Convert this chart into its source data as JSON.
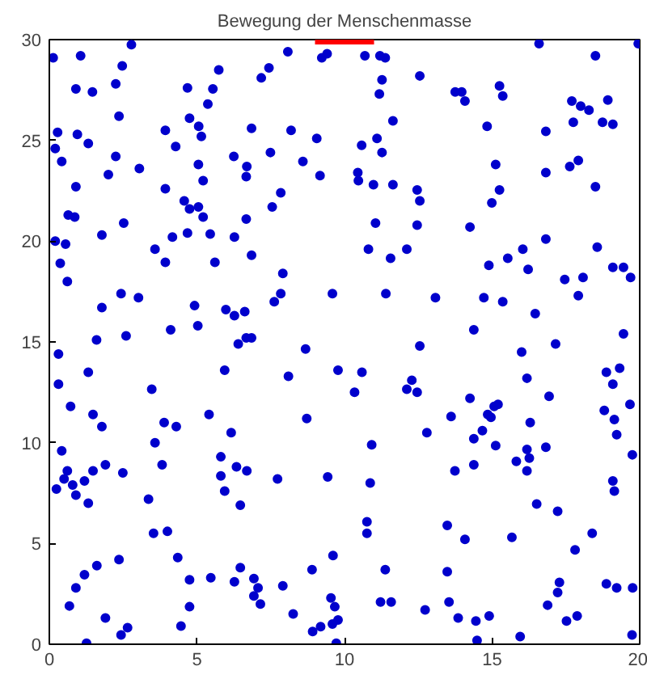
{
  "chart_data": {
    "type": "scatter",
    "title": "Bewegung der Menschenmasse",
    "xlim": [
      0,
      20
    ],
    "ylim": [
      0,
      30
    ],
    "xticks": [
      0,
      5,
      10,
      15,
      20
    ],
    "yticks": [
      0,
      5,
      10,
      15,
      20,
      25,
      30
    ],
    "grid": false,
    "marker": "circle",
    "series": [
      {
        "color": "#0000cc",
        "x": [
          0.13,
          1.06,
          2.78,
          2.47,
          0.9,
          1.46,
          2.25,
          2.36,
          0.28,
          0.95,
          1.32,
          0.2,
          0.42,
          2.25,
          2.0,
          3.05,
          0.9,
          0.64,
          0.86,
          2.52,
          1.78,
          0.2,
          0.55,
          0.37,
          0.61,
          2.43,
          1.78,
          3.02,
          2.6,
          1.6,
          4.68,
          5.54,
          5.74,
          4.75,
          5.06,
          5.37,
          5.15,
          3.93,
          4.28,
          5.05,
          5.21,
          3.93,
          4.57,
          5.05,
          4.75,
          5.21,
          4.68,
          4.17,
          5.45,
          3.58,
          3.93,
          5.61,
          6.25,
          6.69,
          6.67,
          6.85,
          7.49,
          7.84,
          7.55,
          6.67,
          6.27,
          6.85,
          7.91,
          7.84,
          7.62,
          8.59,
          9.17,
          9.06,
          8.19,
          7.18,
          7.44,
          8.08,
          9.23,
          9.41,
          9.59,
          4.92,
          5.03,
          4.11,
          5.98,
          6.27,
          6.62,
          6.67,
          6.85,
          10.69,
          11.2,
          11.38,
          11.27,
          11.18,
          12.55,
          11.64,
          10.58,
          11.1,
          11.27,
          10.45,
          10.47,
          10.98,
          11.64,
          12.46,
          12.55,
          11.05,
          12.46,
          10.81,
          12.11,
          11.56,
          11.4,
          13.08,
          13.75,
          13.97,
          14.08,
          15.25,
          15.36,
          14.83,
          15.12,
          15.25,
          14.99,
          14.25,
          14.89,
          15.53,
          16.04,
          16.22,
          16.82,
          16.82,
          16.82,
          16.59,
          14.72,
          15.36,
          16.46,
          14.38,
          17.7,
          18.0,
          18.28,
          18.92,
          17.75,
          18.74,
          19.09,
          18.5,
          19.95,
          17.63,
          17.92,
          18.5,
          18.56,
          19.09,
          19.45,
          19.69,
          18.08,
          17.46,
          17.92,
          19.45,
          0.31,
          0.31,
          3.47,
          1.32,
          0.72,
          1.48,
          1.78,
          0.42,
          0.61,
          0.5,
          0.24,
          0.79,
          0.9,
          1.19,
          1.48,
          1.32,
          1.9,
          2.49,
          3.58,
          3.89,
          4.3,
          3.82,
          3.36,
          3.53,
          4.0,
          4.35,
          4.75,
          4.75,
          4.46,
          5.41,
          5.94,
          6.4,
          6.16,
          5.81,
          5.81,
          5.94,
          6.34,
          6.69,
          6.47,
          7.73,
          8.1,
          8.68,
          8.72,
          9.78,
          9.43,
          9.61,
          8.9,
          5.47,
          6.27,
          6.47,
          6.93,
          7.07,
          6.93,
          7.15,
          7.91,
          8.26,
          8.92,
          9.19,
          9.59,
          9.78,
          9.67,
          9.54,
          9.72,
          1.61,
          1.19,
          0.9,
          0.68,
          1.9,
          1.26,
          2.36,
          2.43,
          2.65,
          10.59,
          10.34,
          10.92,
          10.87,
          10.76,
          10.76,
          11.38,
          11.22,
          11.58,
          12.55,
          12.11,
          12.28,
          12.46,
          12.79,
          12.73,
          13.61,
          13.74,
          13.48,
          14.08,
          13.48,
          13.54,
          13.85,
          14.25,
          14.38,
          14.38,
          14.67,
          14.85,
          14.96,
          15.07,
          15.2,
          15.12,
          14.45,
          14.49,
          14.9,
          15.82,
          16.0,
          16.18,
          16.29,
          16.18,
          16.26,
          16.18,
          16.51,
          15.67,
          15.95,
          16.82,
          16.93,
          17.15,
          17.22,
          17.28,
          17.22,
          16.88,
          17.52,
          17.88,
          17.81,
          18.39,
          18.8,
          18.87,
          19.09,
          19.32,
          19.14,
          19.22,
          19.67,
          19.75,
          19.09,
          19.14,
          18.87,
          19.22,
          19.76,
          19.74
        ],
        "values": [
          29.1,
          29.2,
          29.75,
          28.7,
          27.55,
          27.4,
          27.8,
          26.2,
          25.4,
          25.3,
          24.85,
          24.6,
          23.95,
          24.2,
          23.3,
          23.6,
          22.7,
          21.3,
          21.2,
          20.9,
          20.3,
          20.0,
          19.85,
          18.9,
          18.0,
          17.4,
          16.7,
          17.2,
          15.3,
          15.1,
          27.6,
          27.55,
          28.5,
          26.1,
          25.7,
          26.8,
          25.2,
          25.5,
          24.7,
          23.8,
          23.0,
          22.6,
          22.0,
          21.7,
          21.6,
          21.2,
          20.4,
          20.2,
          20.35,
          19.6,
          18.95,
          18.95,
          24.2,
          23.7,
          23.2,
          25.6,
          24.4,
          22.4,
          21.7,
          21.1,
          20.2,
          19.3,
          18.4,
          17.4,
          17.0,
          23.95,
          23.25,
          25.1,
          25.5,
          28.1,
          28.6,
          29.4,
          29.1,
          29.3,
          17.4,
          16.8,
          15.8,
          15.6,
          16.6,
          16.3,
          16.5,
          15.2,
          15.2,
          29.2,
          29.2,
          29.1,
          28.0,
          27.3,
          28.2,
          25.97,
          24.76,
          25.1,
          24.4,
          23.4,
          23.0,
          22.8,
          22.8,
          22.54,
          22.0,
          20.9,
          20.8,
          19.6,
          19.6,
          19.15,
          17.4,
          17.2,
          27.4,
          27.4,
          26.95,
          27.7,
          27.2,
          25.7,
          23.8,
          22.54,
          21.9,
          20.7,
          18.8,
          19.15,
          19.6,
          18.6,
          20.1,
          23.4,
          25.45,
          29.8,
          17.2,
          17.0,
          16.4,
          15.6,
          26.95,
          26.7,
          26.5,
          27.0,
          25.9,
          25.9,
          25.8,
          29.2,
          29.8,
          23.7,
          24.0,
          22.7,
          19.7,
          18.7,
          18.7,
          18.2,
          18.2,
          18.1,
          17.3,
          15.4,
          14.4,
          12.9,
          12.65,
          13.5,
          11.8,
          11.4,
          10.8,
          9.6,
          8.6,
          8.2,
          7.7,
          7.9,
          7.4,
          8.1,
          8.6,
          7.0,
          8.9,
          8.5,
          10.0,
          11.0,
          10.8,
          8.9,
          7.2,
          5.5,
          5.6,
          4.3,
          3.2,
          1.86,
          0.9,
          11.4,
          13.6,
          14.9,
          10.5,
          9.3,
          8.35,
          7.6,
          8.8,
          8.6,
          6.9,
          8.2,
          13.3,
          14.65,
          11.2,
          13.6,
          8.3,
          4.4,
          3.7,
          3.3,
          3.1,
          3.8,
          3.26,
          2.8,
          2.4,
          2.0,
          2.9,
          1.5,
          0.63,
          0.87,
          1.0,
          1.2,
          1.86,
          2.3,
          0.05,
          3.9,
          3.45,
          2.8,
          1.9,
          1.3,
          0.05,
          4.2,
          0.46,
          0.82,
          13.5,
          12.5,
          9.9,
          8.0,
          6.08,
          5.5,
          3.7,
          2.1,
          2.1,
          14.8,
          12.65,
          13.1,
          12.5,
          10.5,
          1.7,
          11.3,
          8.6,
          5.9,
          5.2,
          3.6,
          2.1,
          1.3,
          12.2,
          10.2,
          8.9,
          10.6,
          11.4,
          11.26,
          11.8,
          11.9,
          9.86,
          1.15,
          0.19,
          1.4,
          9.07,
          14.5,
          13.2,
          11.0,
          9.67,
          9.23,
          8.6,
          6.96,
          5.3,
          0.38,
          9.78,
          12.3,
          14.9,
          6.6,
          3.07,
          2.57,
          1.94,
          1.15,
          1.4,
          4.68,
          5.5,
          11.6,
          13.5,
          12.9,
          13.7,
          11.15,
          10.4,
          11.9,
          9.4,
          8.1,
          7.6,
          3.0,
          2.8,
          2.8,
          0.46
        ]
      },
      {
        "type": "line",
        "color": "#ff0000",
        "marker": "none",
        "x": [
          9,
          11
        ],
        "values": [
          30,
          30
        ]
      }
    ]
  }
}
